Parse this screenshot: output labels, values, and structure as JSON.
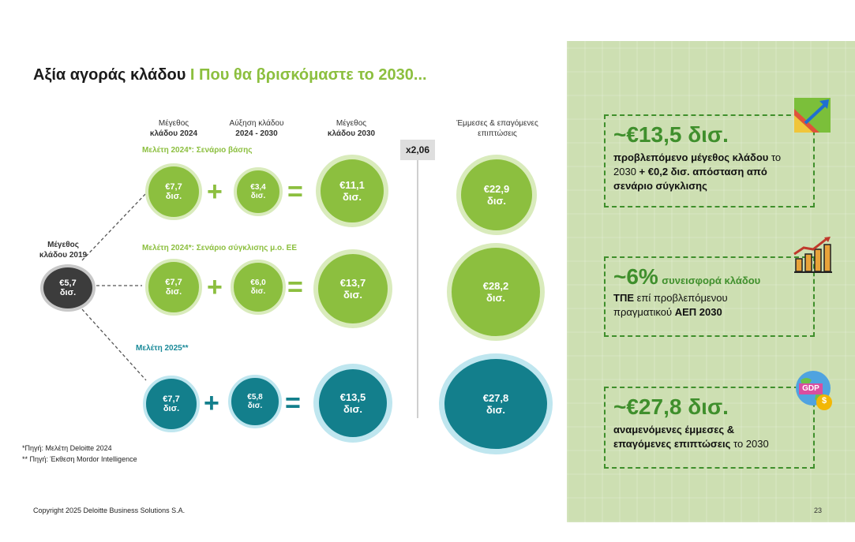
{
  "title": {
    "part1": "Αξία αγοράς κλάδου",
    "sep": "I",
    "part2": "Που θα βρισκόμαστε το 2030..."
  },
  "columns": {
    "size_2024": [
      "Μέγεθος",
      "κλάδου 2024"
    ],
    "growth": [
      "Αύξηση κλάδου",
      "2024 - 2030"
    ],
    "size_2030": [
      "Μέγεθος",
      "κλάδου 2030"
    ],
    "indirect": [
      "Έμμεσες & επαγόμενες",
      "επιπτώσεις"
    ]
  },
  "multiplier": "x2,06",
  "origin": {
    "label": [
      "Μέγεθος",
      "κλάδου 2019"
    ],
    "value": "€5,7",
    "unit": "δισ."
  },
  "scenarios": [
    {
      "label": "Μελέτη 2024*: Σενάριο βάσης",
      "v2024": "€7,7",
      "growth": "€3,4",
      "v2030": "€11,1",
      "indirect": "€22,9"
    },
    {
      "label": "Μελέτη 2024*: Σενάριο σύγκλισης μ.ο. ΕΕ",
      "v2024": "€7,7",
      "growth": "€6,0",
      "v2030": "€13,7",
      "indirect": "€28,2"
    },
    {
      "label": "Μελέτη 2025**",
      "v2024": "€7,7",
      "growth": "€5,8",
      "v2030": "€13,5",
      "indirect": "€27,8"
    }
  ],
  "unit": "δισ.",
  "ops": {
    "plus": "+",
    "equals": "="
  },
  "footnotes": [
    "*Πηγή: Μελέτη Deloitte 2024",
    "** Πηγή: Έκθεση Mordor Intelligence"
  ],
  "copyright": "Copyright 2025 Deloitte Business Solutions S.A.",
  "page_number": "23",
  "kpis": [
    {
      "big": "~€13,5 δισ.",
      "line1a": "προβλεπόμενο μέγεθος κλάδου",
      "line1b": " το",
      "line2a": "2030 ",
      "line2b": "+ €0,2 δισ. απόσταση από",
      "line3": "σενάριο σύγκλισης",
      "icon": "growth-chart-icon"
    },
    {
      "big": "~6%",
      "sub": "συνεισφορά κλάδου",
      "line1a": "ΤΠΕ",
      "line1b": " επί προβλεπόμενου",
      "line2a": "πραγματικού ",
      "line2b": "ΑΕΠ 2030",
      "icon": "bar-chart-rising-icon"
    },
    {
      "big": "~€27,8 δισ.",
      "line1a": "αναμενόμενες έμμεσες &",
      "line2a": "επαγόμενες επιπτώσεις",
      "line2b": " το 2030",
      "icon": "gdp-globe-icon",
      "icon_text": "GDP",
      "icon_text2": "$"
    }
  ],
  "colors": {
    "green": "#8cbf3f",
    "teal": "#137f8c",
    "dark_green": "#3f8f2c",
    "panel_bg": "#cddfb2"
  }
}
